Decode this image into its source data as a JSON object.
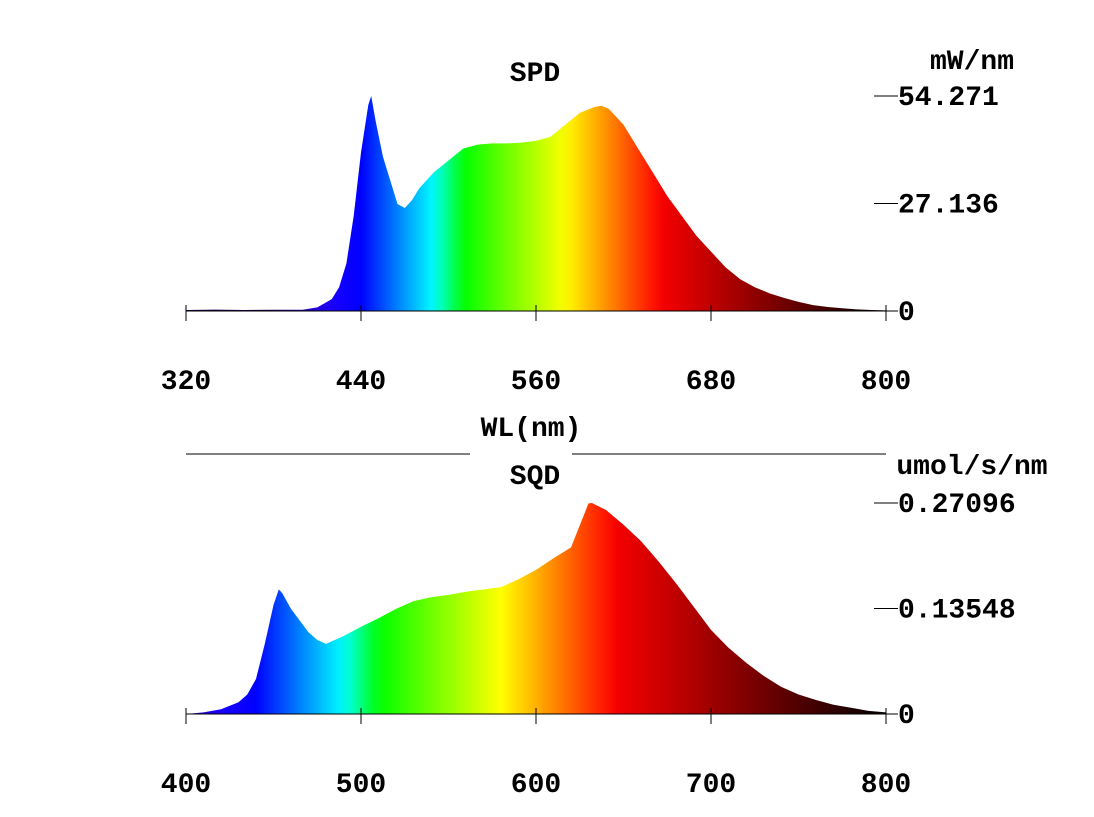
{
  "chart_data": [
    {
      "type": "area",
      "title": "SPD",
      "xlabel": "WL(nm)",
      "ylabel": "mW/nm",
      "xlim": [
        320,
        800
      ],
      "ylim": [
        0,
        54.271
      ],
      "x_ticks": [
        320,
        440,
        560,
        680,
        800
      ],
      "x_tick_labels": [
        "320",
        "440",
        "560",
        "680",
        "800"
      ],
      "y_ticks": [
        0,
        27.136,
        54.271
      ],
      "y_tick_labels": [
        "0",
        "27.136",
        "54.271"
      ],
      "fill": "wavelength-spectrum-gradient",
      "series": [
        {
          "name": "SPD",
          "points": [
            [
              320,
              0.25
            ],
            [
              340,
              0.35
            ],
            [
              360,
              0.25
            ],
            [
              380,
              0.3
            ],
            [
              400,
              0.3
            ],
            [
              410,
              0.9
            ],
            [
              420,
              3.0
            ],
            [
              425,
              6.0
            ],
            [
              430,
              12.0
            ],
            [
              435,
              24.0
            ],
            [
              440,
              40.0
            ],
            [
              445,
              52.0
            ],
            [
              447,
              54.271
            ],
            [
              450,
              48.0
            ],
            [
              455,
              39.0
            ],
            [
              460,
              33.0
            ],
            [
              465,
              27.0
            ],
            [
              470,
              26.0
            ],
            [
              475,
              28.0
            ],
            [
              480,
              31.0
            ],
            [
              490,
              35.0
            ],
            [
              500,
              38.0
            ],
            [
              510,
              41.0
            ],
            [
              520,
              42.0
            ],
            [
              530,
              42.3
            ],
            [
              540,
              42.3
            ],
            [
              550,
              42.5
            ],
            [
              560,
              43.0
            ],
            [
              570,
              44.0
            ],
            [
              580,
              47.0
            ],
            [
              590,
              50.0
            ],
            [
              600,
              51.5
            ],
            [
              605,
              51.8
            ],
            [
              610,
              51.0
            ],
            [
              620,
              47.0
            ],
            [
              630,
              41.0
            ],
            [
              640,
              35.0
            ],
            [
              650,
              29.0
            ],
            [
              660,
              24.0
            ],
            [
              670,
              19.0
            ],
            [
              680,
              15.0
            ],
            [
              690,
              11.0
            ],
            [
              700,
              8.0
            ],
            [
              710,
              6.0
            ],
            [
              720,
              4.5
            ],
            [
              730,
              3.3
            ],
            [
              740,
              2.3
            ],
            [
              750,
              1.5
            ],
            [
              760,
              1.0
            ],
            [
              770,
              0.7
            ],
            [
              780,
              0.4
            ],
            [
              790,
              0.25
            ],
            [
              800,
              0.15
            ]
          ]
        }
      ]
    },
    {
      "type": "area",
      "title": "SQD",
      "xlabel": "",
      "ylabel": "umol/s/nm",
      "xlim": [
        400,
        800
      ],
      "ylim": [
        0,
        0.27096
      ],
      "x_ticks": [
        400,
        500,
        600,
        700,
        800
      ],
      "x_tick_labels": [
        "400",
        "500",
        "600",
        "700",
        "800"
      ],
      "y_ticks": [
        0,
        0.13548,
        0.27096
      ],
      "y_tick_labels": [
        "0",
        "0.13548",
        "0.27096"
      ],
      "fill": "wavelength-spectrum-gradient",
      "series": [
        {
          "name": "SQD",
          "points": [
            [
              400,
              0.0
            ],
            [
              410,
              0.002
            ],
            [
              420,
              0.006
            ],
            [
              430,
              0.015
            ],
            [
              435,
              0.025
            ],
            [
              440,
              0.045
            ],
            [
              445,
              0.09
            ],
            [
              450,
              0.14
            ],
            [
              453,
              0.16
            ],
            [
              455,
              0.155
            ],
            [
              460,
              0.135
            ],
            [
              465,
              0.12
            ],
            [
              470,
              0.105
            ],
            [
              475,
              0.095
            ],
            [
              480,
              0.09
            ],
            [
              490,
              0.1
            ],
            [
              500,
              0.112
            ],
            [
              510,
              0.123
            ],
            [
              520,
              0.135
            ],
            [
              530,
              0.145
            ],
            [
              540,
              0.15
            ],
            [
              550,
              0.153
            ],
            [
              560,
              0.157
            ],
            [
              570,
              0.16
            ],
            [
              580,
              0.163
            ],
            [
              590,
              0.173
            ],
            [
              600,
              0.185
            ],
            [
              610,
              0.2
            ],
            [
              620,
              0.214
            ],
            [
              630,
              0.2705
            ],
            [
              632,
              0.27096
            ],
            [
              640,
              0.262
            ],
            [
              650,
              0.243
            ],
            [
              660,
              0.222
            ],
            [
              670,
              0.196
            ],
            [
              680,
              0.168
            ],
            [
              690,
              0.138
            ],
            [
              700,
              0.108
            ],
            [
              710,
              0.085
            ],
            [
              720,
              0.066
            ],
            [
              730,
              0.049
            ],
            [
              740,
              0.035
            ],
            [
              750,
              0.025
            ],
            [
              760,
              0.018
            ],
            [
              770,
              0.012
            ],
            [
              780,
              0.008
            ],
            [
              790,
              0.004
            ],
            [
              800,
              0.002
            ]
          ]
        }
      ]
    }
  ]
}
